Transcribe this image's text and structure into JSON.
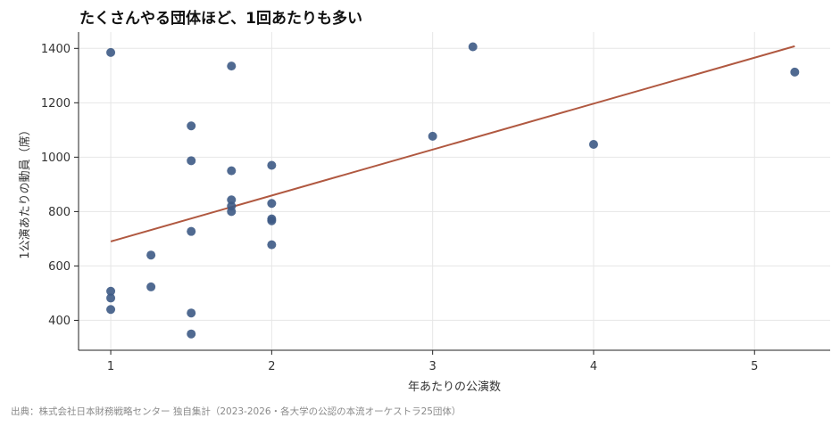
{
  "chart_data": {
    "type": "scatter",
    "title": "たくさんやる団体ほど、1回あたりも多い",
    "xlabel": "年あたりの公演数",
    "ylabel": "1公演あたりの動員（席）",
    "xlim": [
      0.8,
      5.47
    ],
    "ylim": [
      290,
      1460
    ],
    "x_ticks": [
      1,
      2,
      3,
      4,
      5
    ],
    "y_ticks": [
      400,
      600,
      800,
      1000,
      1200,
      1400
    ],
    "grid": true,
    "legend": "none",
    "points": [
      {
        "x": 1,
        "y": 1385
      },
      {
        "x": 1,
        "y": 507
      },
      {
        "x": 1,
        "y": 482
      },
      {
        "x": 1,
        "y": 440
      },
      {
        "x": 1.25,
        "y": 640
      },
      {
        "x": 1.25,
        "y": 523
      },
      {
        "x": 1.5,
        "y": 1115
      },
      {
        "x": 1.5,
        "y": 987
      },
      {
        "x": 1.5,
        "y": 727
      },
      {
        "x": 1.5,
        "y": 427
      },
      {
        "x": 1.5,
        "y": 350
      },
      {
        "x": 1.75,
        "y": 1335
      },
      {
        "x": 1.75,
        "y": 950
      },
      {
        "x": 1.75,
        "y": 843
      },
      {
        "x": 1.75,
        "y": 820
      },
      {
        "x": 1.75,
        "y": 800
      },
      {
        "x": 2,
        "y": 970
      },
      {
        "x": 2,
        "y": 830
      },
      {
        "x": 2,
        "y": 773
      },
      {
        "x": 2,
        "y": 766
      },
      {
        "x": 2,
        "y": 678
      },
      {
        "x": 3,
        "y": 1077
      },
      {
        "x": 3.25,
        "y": 1406
      },
      {
        "x": 4,
        "y": 1047
      },
      {
        "x": 5.25,
        "y": 1313
      }
    ],
    "trendline": {
      "x": [
        1,
        5.25
      ],
      "y": [
        690,
        1408
      ]
    },
    "colors": {
      "points": "#3d5a85",
      "trendline": "#b05840"
    },
    "source": "出典：株式会社日本財務戦略センター 独自集計（2023-2026・各大学の公認の本流オーケストラ25団体）"
  }
}
